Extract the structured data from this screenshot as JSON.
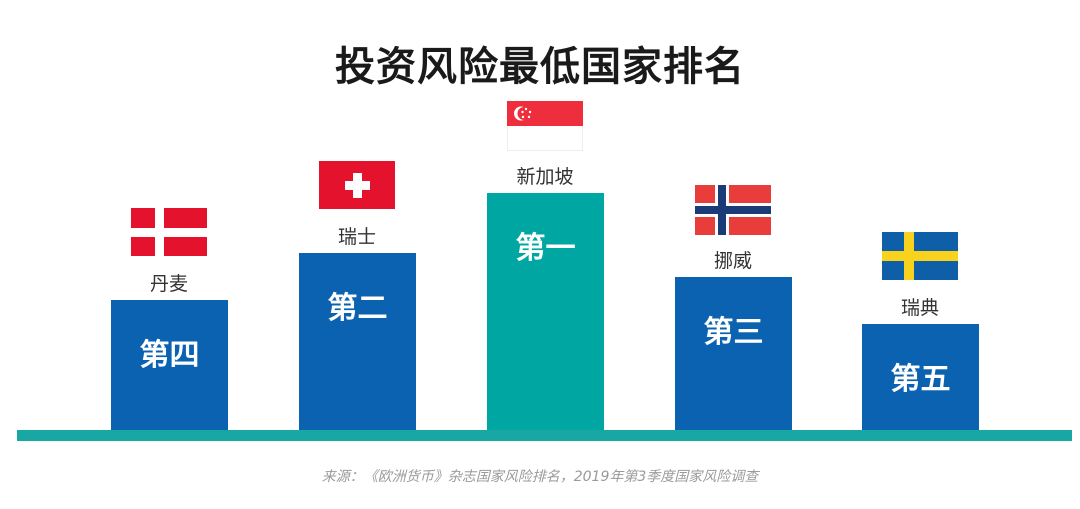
{
  "chart_data": {
    "type": "bar",
    "title": "投资风险最低国家排名",
    "categories": [
      "丹麦",
      "瑞士",
      "新加坡",
      "挪威",
      "瑞典"
    ],
    "rank_labels": [
      "第四",
      "第二",
      "第一",
      "第三",
      "第五"
    ],
    "ranks": [
      4,
      2,
      1,
      3,
      5
    ],
    "flags": [
      "denmark-flag",
      "switzerland-flag",
      "singapore-flag",
      "norway-flag",
      "sweden-flag"
    ],
    "colors": {
      "bar": "#0a62b0",
      "highlight": "#00a7a2",
      "baseline": "#18a7a3"
    },
    "source": "来源：《欧洲货币》杂志国家风险排名，2019年第3季度国家风险调查"
  }
}
